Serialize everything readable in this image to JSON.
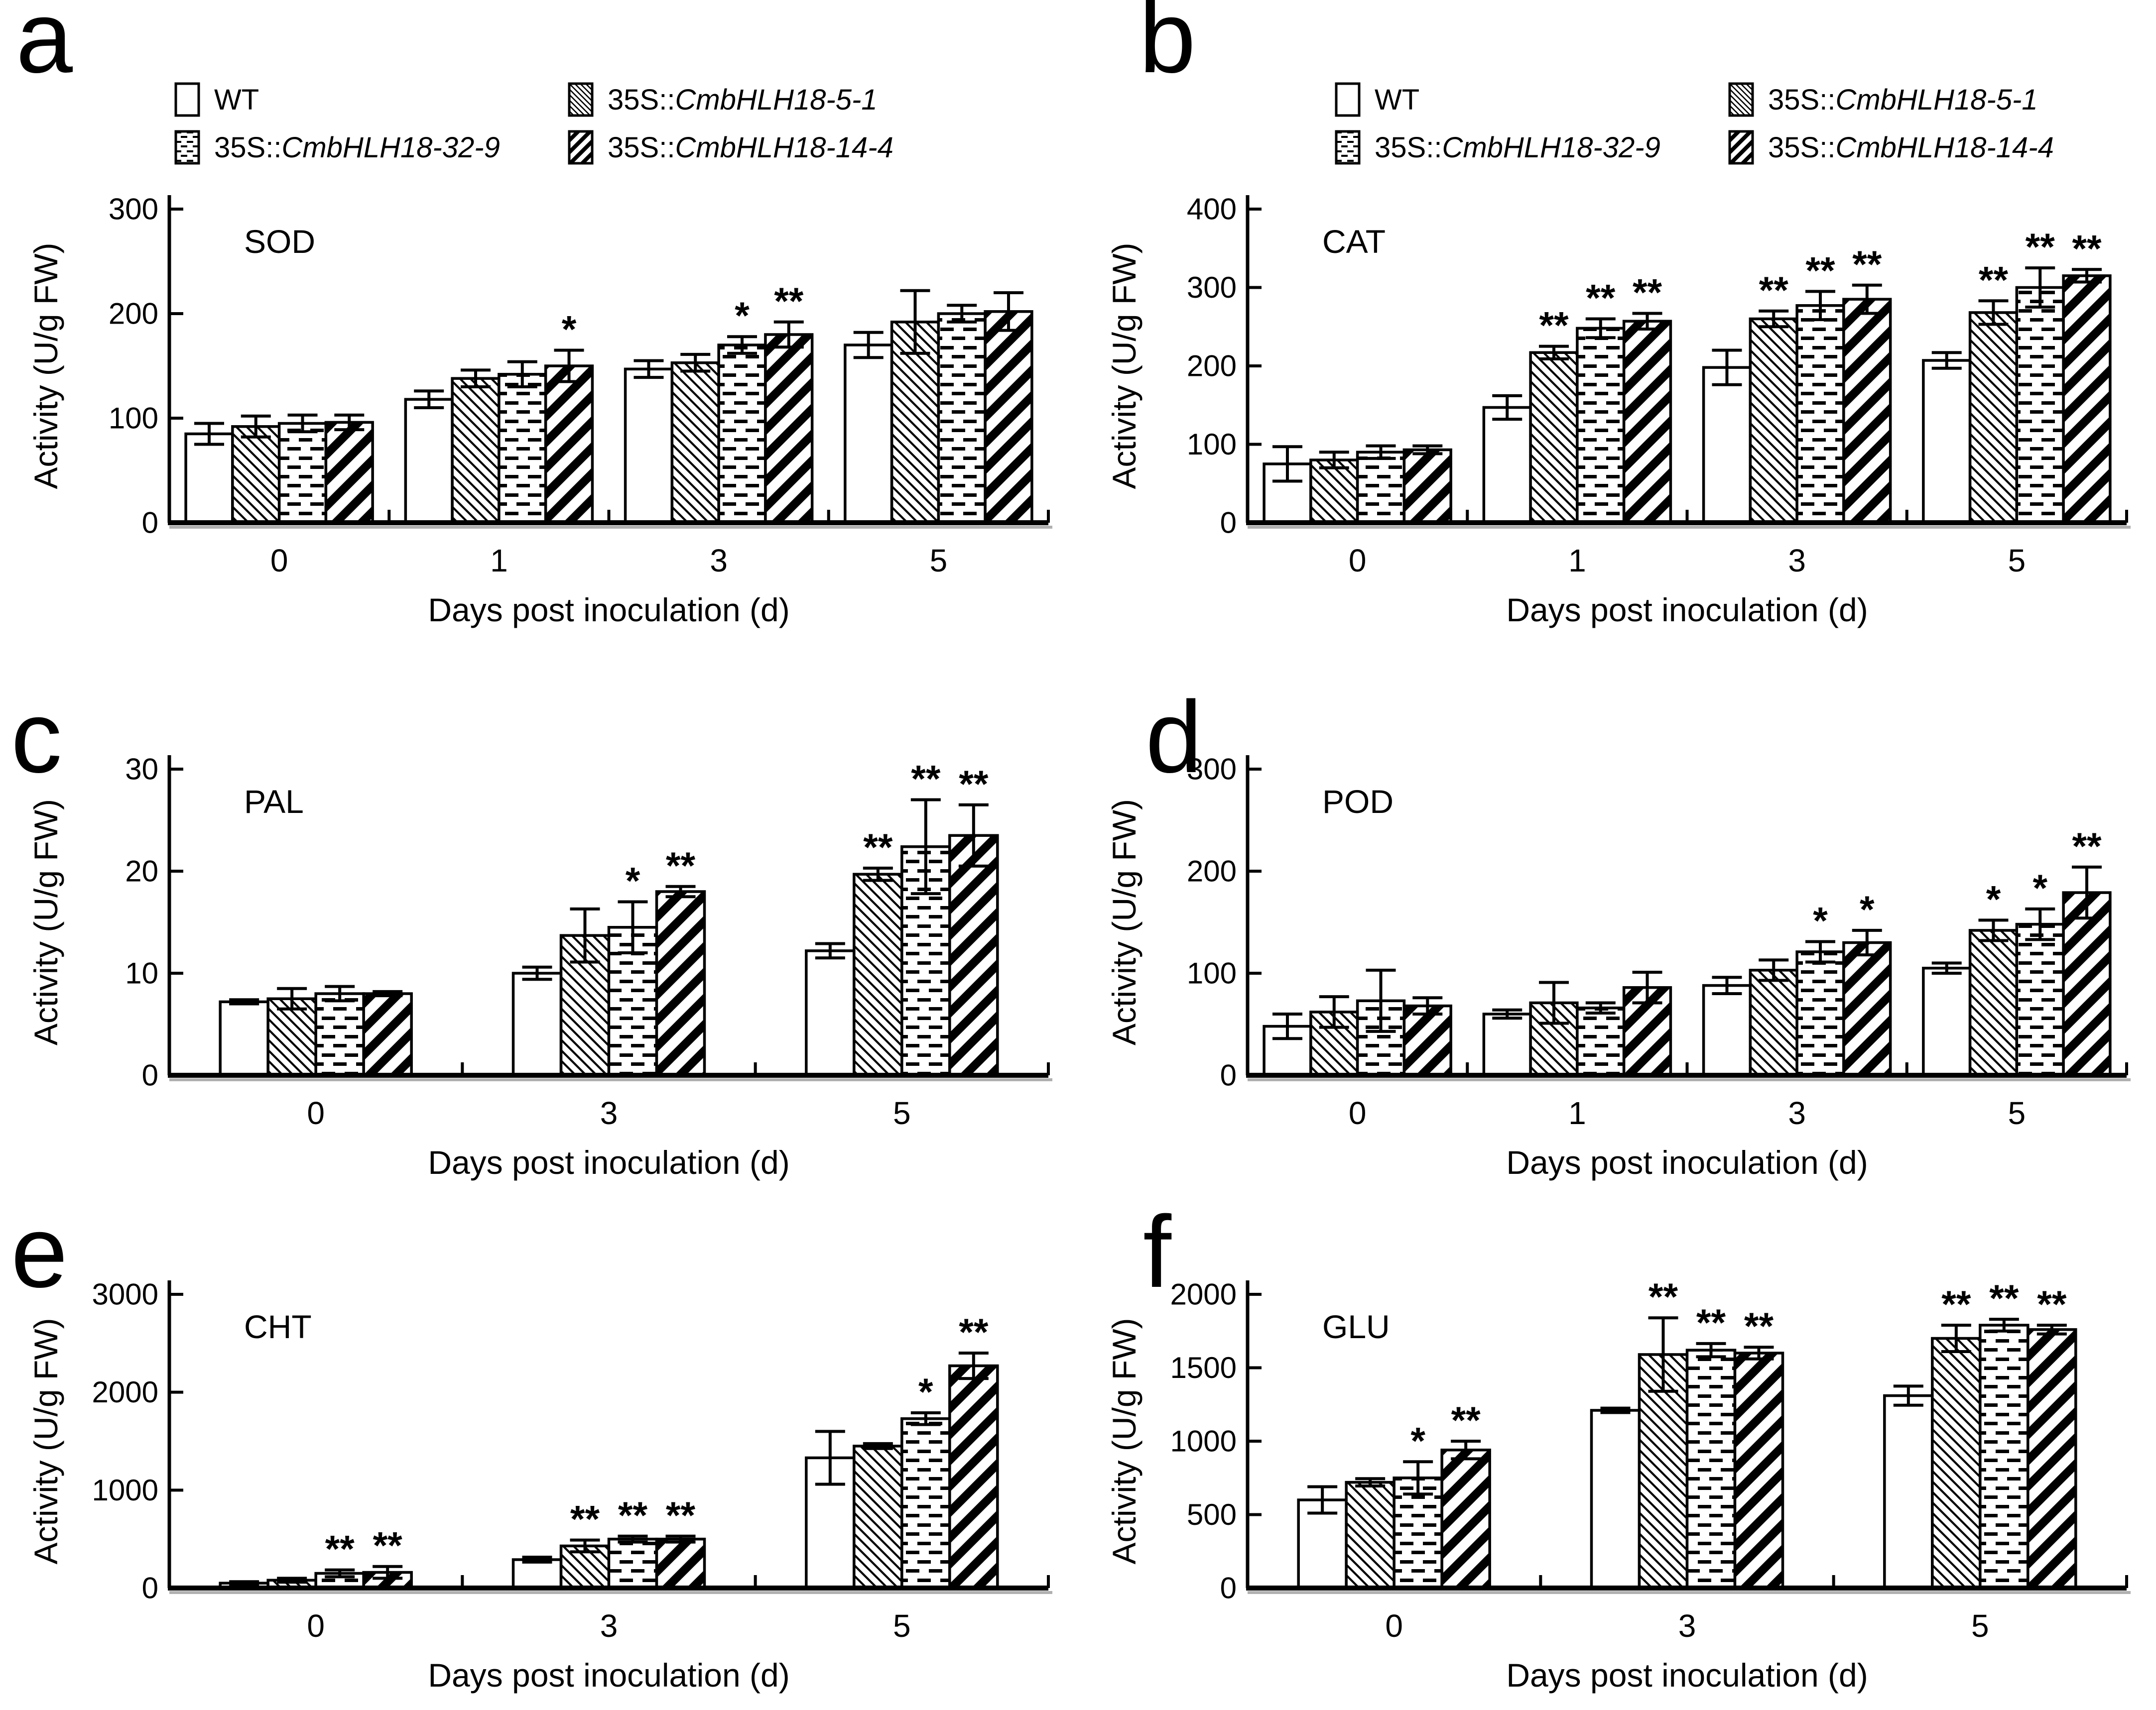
{
  "figure": {
    "background": "#ffffff",
    "ink": "#000000",
    "axis_shadow": "#b0b0b0"
  },
  "legend": {
    "items": [
      {
        "upright": "WT",
        "italic": "",
        "pattern": "plain"
      },
      {
        "upright": "35S::",
        "italic": "CmbHLH18-32-9",
        "pattern": "dash"
      },
      {
        "upright": "35S::",
        "italic": "CmbHLH18-5-1",
        "pattern": "hatch-thin"
      },
      {
        "upright": "35S::",
        "italic": "CmbHLH18-14-4",
        "pattern": "hatch-bold"
      }
    ]
  },
  "chart_data": [
    {
      "type": "bar",
      "panel_letter": "a",
      "title": "SOD",
      "xlabel": "Days post inoculation (d)",
      "ylabel": "Activity (U/g FW)",
      "ylim": [
        0,
        300
      ],
      "yticks": [
        0,
        100,
        200,
        300
      ],
      "categories": [
        "0",
        "1",
        "3",
        "5"
      ],
      "has_legend": true,
      "series": [
        {
          "name": "WT",
          "pattern": "plain",
          "values": [
            85,
            118,
            147,
            170
          ],
          "errors": [
            10,
            8,
            8,
            12
          ],
          "sig": [
            "",
            "",
            "",
            ""
          ]
        },
        {
          "name": "35S::CmbHLH18-5-1",
          "pattern": "hatch-thin",
          "values": [
            92,
            138,
            153,
            192
          ],
          "errors": [
            10,
            8,
            8,
            30
          ],
          "sig": [
            "",
            "",
            "",
            ""
          ]
        },
        {
          "name": "35S::CmbHLH18-32-9",
          "pattern": "dash",
          "values": [
            95,
            142,
            170,
            200
          ],
          "errors": [
            8,
            12,
            8,
            8
          ],
          "sig": [
            "",
            "",
            "*",
            ""
          ]
        },
        {
          "name": "35S::CmbHLH18-14-4",
          "pattern": "hatch-bold",
          "values": [
            96,
            150,
            180,
            202
          ],
          "errors": [
            7,
            15,
            12,
            18
          ],
          "sig": [
            "",
            "*",
            "**",
            ""
          ]
        }
      ]
    },
    {
      "type": "bar",
      "panel_letter": "b",
      "title": "CAT",
      "xlabel": "Days post inoculation (d)",
      "ylabel": "Activity (U/g FW)",
      "ylim": [
        0,
        400
      ],
      "yticks": [
        0,
        100,
        200,
        300,
        400
      ],
      "categories": [
        "0",
        "1",
        "3",
        "5"
      ],
      "has_legend": true,
      "series": [
        {
          "name": "WT",
          "pattern": "plain",
          "values": [
            75,
            147,
            198,
            207
          ],
          "errors": [
            22,
            15,
            22,
            10
          ],
          "sig": [
            "",
            "",
            "",
            ""
          ]
        },
        {
          "name": "35S::CmbHLH18-5-1",
          "pattern": "hatch-thin",
          "values": [
            80,
            217,
            260,
            268
          ],
          "errors": [
            10,
            8,
            10,
            15
          ],
          "sig": [
            "",
            "**",
            "**",
            "**"
          ]
        },
        {
          "name": "35S::CmbHLH18-32-9",
          "pattern": "dash",
          "values": [
            90,
            248,
            277,
            300
          ],
          "errors": [
            8,
            12,
            18,
            25
          ],
          "sig": [
            "",
            "**",
            "**",
            "**"
          ]
        },
        {
          "name": "35S::CmbHLH18-14-4",
          "pattern": "hatch-bold",
          "values": [
            93,
            257,
            285,
            315
          ],
          "errors": [
            5,
            10,
            18,
            8
          ],
          "sig": [
            "",
            "**",
            "**",
            "**"
          ]
        }
      ]
    },
    {
      "type": "bar",
      "panel_letter": "c",
      "title": "PAL",
      "xlabel": "Days post inoculation (d)",
      "ylabel": "Activity (U/g FW)",
      "ylim": [
        0,
        30
      ],
      "yticks": [
        0,
        10,
        20,
        30
      ],
      "categories": [
        "0",
        "3",
        "5"
      ],
      "has_legend": false,
      "series": [
        {
          "name": "WT",
          "pattern": "plain",
          "values": [
            7.2,
            10,
            12.2
          ],
          "errors": [
            0.2,
            0.6,
            0.7
          ],
          "sig": [
            "",
            "",
            ""
          ]
        },
        {
          "name": "35S::CmbHLH18-5-1",
          "pattern": "hatch-thin",
          "values": [
            7.5,
            13.7,
            19.7
          ],
          "errors": [
            1,
            2.6,
            0.6
          ],
          "sig": [
            "",
            "",
            "**"
          ]
        },
        {
          "name": "35S::CmbHLH18-32-9",
          "pattern": "dash",
          "values": [
            8,
            14.5,
            22.4
          ],
          "errors": [
            0.7,
            2.5,
            4.6
          ],
          "sig": [
            "",
            "*",
            "**"
          ]
        },
        {
          "name": "35S::CmbHLH18-14-4",
          "pattern": "hatch-bold",
          "values": [
            8,
            18,
            23.5
          ],
          "errors": [
            0.2,
            0.5,
            3
          ],
          "sig": [
            "",
            "**",
            "**"
          ]
        }
      ]
    },
    {
      "type": "bar",
      "panel_letter": "d",
      "title": "POD",
      "xlabel": "Days post inoculation (d)",
      "ylabel": "Activity (U/g FW)",
      "ylim": [
        0,
        300
      ],
      "yticks": [
        0,
        100,
        200,
        300
      ],
      "categories": [
        "0",
        "1",
        "3",
        "5"
      ],
      "has_legend": false,
      "series": [
        {
          "name": "WT",
          "pattern": "plain",
          "values": [
            48,
            60,
            88,
            105
          ],
          "errors": [
            12,
            4,
            8,
            5
          ],
          "sig": [
            "",
            "",
            "",
            ""
          ]
        },
        {
          "name": "35S::CmbHLH18-5-1",
          "pattern": "hatch-thin",
          "values": [
            62,
            71,
            103,
            142
          ],
          "errors": [
            15,
            20,
            10,
            10
          ],
          "sig": [
            "",
            "",
            "",
            "*"
          ]
        },
        {
          "name": "35S::CmbHLH18-32-9",
          "pattern": "dash",
          "values": [
            73,
            66,
            121,
            148
          ],
          "errors": [
            30,
            5,
            10,
            15
          ],
          "sig": [
            "",
            "",
            "*",
            "*"
          ]
        },
        {
          "name": "35S::CmbHLH18-14-4",
          "pattern": "hatch-bold",
          "values": [
            68,
            86,
            130,
            179
          ],
          "errors": [
            8,
            15,
            12,
            25
          ],
          "sig": [
            "",
            "",
            "*",
            "**"
          ]
        }
      ]
    },
    {
      "type": "bar",
      "panel_letter": "e",
      "title": "CHT",
      "xlabel": "Days post inoculation (d)",
      "ylabel": "Activity (U/g FW)",
      "ylim": [
        0,
        3000
      ],
      "yticks": [
        0,
        1000,
        2000,
        3000
      ],
      "categories": [
        "0",
        "3",
        "5"
      ],
      "has_legend": false,
      "series": [
        {
          "name": "WT",
          "pattern": "plain",
          "values": [
            50,
            290,
            1330
          ],
          "errors": [
            15,
            25,
            270
          ],
          "sig": [
            "",
            "",
            ""
          ]
        },
        {
          "name": "35S::CmbHLH18-5-1",
          "pattern": "hatch-thin",
          "values": [
            80,
            430,
            1450
          ],
          "errors": [
            20,
            60,
            25
          ],
          "sig": [
            "",
            "**",
            ""
          ]
        },
        {
          "name": "35S::CmbHLH18-32-9",
          "pattern": "dash",
          "values": [
            150,
            500,
            1730
          ],
          "errors": [
            35,
            30,
            60
          ],
          "sig": [
            "**",
            "**",
            "*"
          ]
        },
        {
          "name": "35S::CmbHLH18-14-4",
          "pattern": "hatch-bold",
          "values": [
            160,
            500,
            2270
          ],
          "errors": [
            60,
            30,
            130
          ],
          "sig": [
            "**",
            "**",
            "**"
          ]
        }
      ]
    },
    {
      "type": "bar",
      "panel_letter": "f",
      "title": "GLU",
      "xlabel": "Days post inoculation (d)",
      "ylabel": "Activity (U/g FW)",
      "ylim": [
        0,
        2000
      ],
      "yticks": [
        0,
        500,
        1000,
        1500,
        2000
      ],
      "categories": [
        "0",
        "3",
        "5"
      ],
      "has_legend": false,
      "series": [
        {
          "name": "WT",
          "pattern": "plain",
          "values": [
            600,
            1210,
            1310
          ],
          "errors": [
            90,
            15,
            65
          ],
          "sig": [
            "",
            "",
            ""
          ]
        },
        {
          "name": "35S::CmbHLH18-5-1",
          "pattern": "hatch-thin",
          "values": [
            720,
            1590,
            1700
          ],
          "errors": [
            25,
            250,
            90
          ],
          "sig": [
            "",
            "**",
            "**"
          ]
        },
        {
          "name": "35S::CmbHLH18-32-9",
          "pattern": "dash",
          "values": [
            750,
            1620,
            1790
          ],
          "errors": [
            110,
            45,
            40
          ],
          "sig": [
            "*",
            "**",
            "**"
          ]
        },
        {
          "name": "35S::CmbHLH18-14-4",
          "pattern": "hatch-bold",
          "values": [
            940,
            1600,
            1760
          ],
          "errors": [
            60,
            40,
            30
          ],
          "sig": [
            "**",
            "**",
            "**"
          ]
        }
      ]
    }
  ]
}
